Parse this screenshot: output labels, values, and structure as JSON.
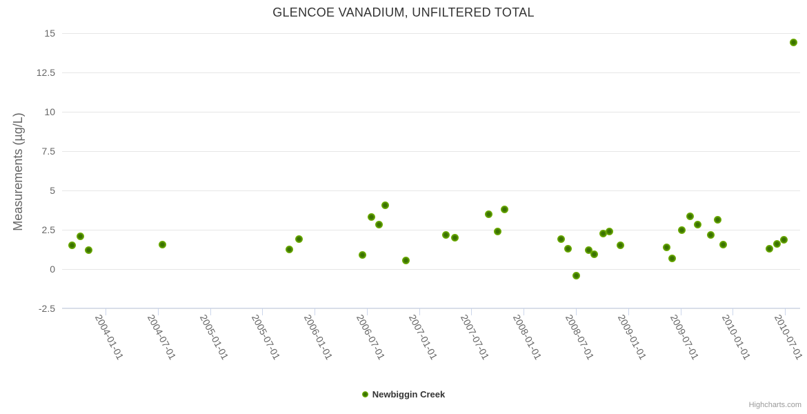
{
  "colors": {
    "point_fill": "#74b404",
    "point_core": "#3a7201",
    "point_edge": "#8cc41d",
    "grid_line": "#e6e6e6",
    "axis_line": "#ccd6eb",
    "tick_label": "#666666",
    "axis_title": "#666666",
    "title": "#333333",
    "legend_text": "#333333",
    "credit_text": "#999999"
  },
  "credit": {
    "label": "Highcharts.com"
  },
  "chart_data": {
    "type": "scatter",
    "title": "GLENCOE VANADIUM, UNFILTERED TOTAL",
    "xlabel": "",
    "ylabel": "Measurements (µg/L)",
    "ylim": [
      -2.5,
      15
    ],
    "xlim": [
      "2003-08-01",
      "2010-09-01"
    ],
    "y_ticks": [
      -2.5,
      0,
      2.5,
      5,
      7.5,
      10,
      12.5,
      15
    ],
    "x_ticks": [
      "2004-01-01",
      "2004-07-01",
      "2005-01-01",
      "2005-07-01",
      "2006-01-01",
      "2006-07-01",
      "2007-01-01",
      "2007-07-01",
      "2008-01-01",
      "2008-07-01",
      "2009-01-01",
      "2009-07-01",
      "2010-01-01",
      "2010-07-01"
    ],
    "grid": "horizontal-only",
    "legend_position": "bottom-center",
    "series": [
      {
        "name": "Newbiggin Creek",
        "points": [
          {
            "date": "2003-09-07",
            "value": 1.5
          },
          {
            "date": "2003-10-05",
            "value": 2.1
          },
          {
            "date": "2003-11-04",
            "value": 1.2
          },
          {
            "date": "2004-07-16",
            "value": 1.55
          },
          {
            "date": "2005-10-03",
            "value": 1.25
          },
          {
            "date": "2005-11-08",
            "value": 1.9
          },
          {
            "date": "2006-06-17",
            "value": 0.9
          },
          {
            "date": "2006-07-16",
            "value": 3.3
          },
          {
            "date": "2006-08-12",
            "value": 2.85
          },
          {
            "date": "2006-09-04",
            "value": 4.05
          },
          {
            "date": "2006-11-15",
            "value": 0.55
          },
          {
            "date": "2007-04-03",
            "value": 2.15
          },
          {
            "date": "2007-05-04",
            "value": 2.0
          },
          {
            "date": "2007-09-01",
            "value": 3.5
          },
          {
            "date": "2007-10-01",
            "value": 2.4
          },
          {
            "date": "2007-10-26",
            "value": 3.8
          },
          {
            "date": "2008-05-11",
            "value": 1.9
          },
          {
            "date": "2008-06-03",
            "value": 1.3
          },
          {
            "date": "2008-07-01",
            "value": -0.4
          },
          {
            "date": "2008-08-15",
            "value": 1.2
          },
          {
            "date": "2008-09-03",
            "value": 0.95
          },
          {
            "date": "2008-10-05",
            "value": 2.25
          },
          {
            "date": "2008-10-26",
            "value": 2.4
          },
          {
            "date": "2008-12-04",
            "value": 1.5
          },
          {
            "date": "2009-05-14",
            "value": 1.4
          },
          {
            "date": "2009-06-03",
            "value": 0.7
          },
          {
            "date": "2009-07-06",
            "value": 2.5
          },
          {
            "date": "2009-08-05",
            "value": 3.35
          },
          {
            "date": "2009-09-01",
            "value": 2.85
          },
          {
            "date": "2009-10-16",
            "value": 2.15
          },
          {
            "date": "2009-11-10",
            "value": 3.15
          },
          {
            "date": "2009-11-29",
            "value": 1.55
          },
          {
            "date": "2010-05-07",
            "value": 1.3
          },
          {
            "date": "2010-06-03",
            "value": 1.6
          },
          {
            "date": "2010-06-27",
            "value": 1.85
          },
          {
            "date": "2010-08-01",
            "value": 14.4
          }
        ]
      }
    ]
  }
}
